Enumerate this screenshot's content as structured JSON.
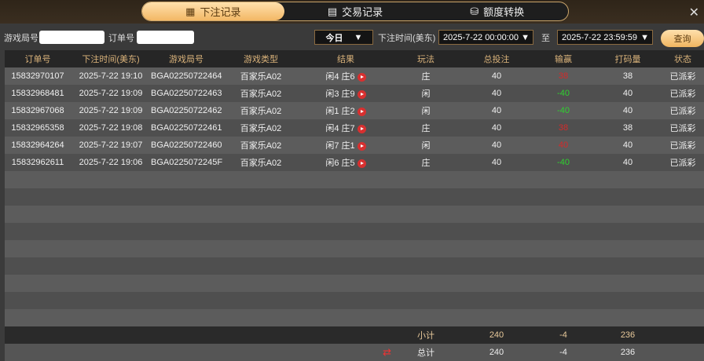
{
  "tabs": [
    {
      "label": "下注记录",
      "icon": "calendar-icon",
      "active": true
    },
    {
      "label": "交易记录",
      "icon": "clipboard-icon"
    },
    {
      "label": "额度转换",
      "icon": "coin-transfer-icon"
    }
  ],
  "filters": {
    "round_label": "游戏局号",
    "round_value": "",
    "order_label": "订单号",
    "order_value": "",
    "period": "今日",
    "time_label": "下注时间(美东)",
    "start": "2025-7-22 00:00:00",
    "to_label": "至",
    "end": "2025-7-22 23:59:59",
    "query": "查询"
  },
  "columns": [
    "订单号",
    "下注时间(美东)",
    "游戏局号",
    "游戏类型",
    "结果",
    "玩法",
    "总投注",
    "输赢",
    "打码量",
    "状态"
  ],
  "rows": [
    [
      "15832970107",
      "2025-7-22 19:10",
      "BGA02250722464",
      "百家乐A02",
      "闲4 庄6",
      "庄",
      "40",
      "38",
      "38",
      "已派彩"
    ],
    [
      "15832968481",
      "2025-7-22 19:09",
      "BGA02250722463",
      "百家乐A02",
      "闲3 庄9",
      "闲",
      "40",
      "-40",
      "40",
      "已派彩"
    ],
    [
      "15832967068",
      "2025-7-22 19:09",
      "BGA02250722462",
      "百家乐A02",
      "闲1 庄2",
      "闲",
      "40",
      "-40",
      "40",
      "已派彩"
    ],
    [
      "15832965358",
      "2025-7-22 19:08",
      "BGA02250722461",
      "百家乐A02",
      "闲4 庄7",
      "庄",
      "40",
      "38",
      "38",
      "已派彩"
    ],
    [
      "15832964264",
      "2025-7-22 19:07",
      "BGA02250722460",
      "百家乐A02",
      "闲7 庄1",
      "闲",
      "40",
      "40",
      "40",
      "已派彩"
    ],
    [
      "15832962611",
      "2025-7-22 19:06",
      "BGA0225072245F",
      "百家乐A02",
      "闲6 庄5",
      "庄",
      "40",
      "-40",
      "40",
      "已派彩"
    ]
  ],
  "subtotal": {
    "label": "小计",
    "bet": "240",
    "winloss": "-4",
    "valid": "236"
  },
  "total": {
    "label": "总计",
    "bet": "240",
    "winloss": "-4",
    "valid": "236"
  },
  "colors": {
    "win": "#d42a2a",
    "loss": "#2fd12f",
    "accent": "#f3b865"
  }
}
